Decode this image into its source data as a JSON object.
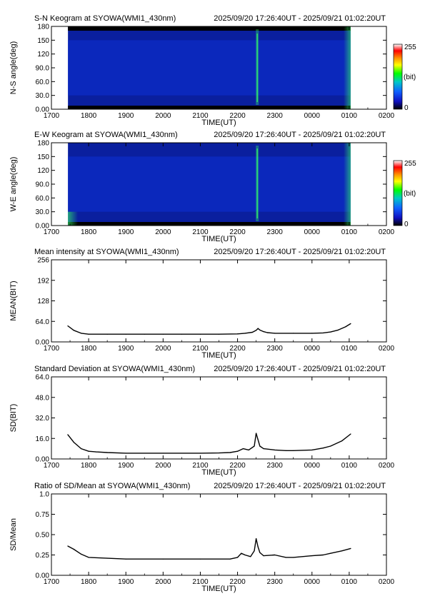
{
  "header": {
    "period": "2025/09/20 17:26:40UT - 2025/09/21 01:02:20UT"
  },
  "colors": {
    "keogram_background": "#0a1f9e",
    "keogram_band": "#0b2fd0",
    "keogram_dark": "#000000",
    "aurora": "#33ff66",
    "colorbar": [
      "#000000",
      "#1010c0",
      "#1060ff",
      "#00c8c8",
      "#00ff00",
      "#ffff00",
      "#ff9900",
      "#ff0000",
      "#ffffff"
    ]
  },
  "chart_data": [
    {
      "type": "heatmap",
      "title": "S-N Keogram at SYOWA(WMI1_430nm)",
      "xlabel": "TIME(UT)",
      "ylabel": "N-S angle(deg)",
      "x_ticks": [
        "1700",
        "1800",
        "1900",
        "2000",
        "2100",
        "2200",
        "2300",
        "0000",
        "0100",
        "0200"
      ],
      "y_ticks": [
        0,
        30,
        60,
        90,
        120,
        150,
        180
      ],
      "y_tick_labels": [
        "0.00",
        "30.0",
        "60.0",
        "90.0",
        "120",
        "150",
        "180"
      ],
      "ylim": [
        0,
        180
      ],
      "data_span_hours": [
        17.444,
        25.039
      ],
      "colorbar": {
        "max_label": "255",
        "unit_label": "(bit)",
        "min_label": "0"
      }
    },
    {
      "type": "heatmap",
      "title": "E-W Keogram at SYOWA(WMI1_430nm)",
      "xlabel": "TIME(UT)",
      "ylabel": "W-E angle(deg)",
      "x_ticks": [
        "1700",
        "1800",
        "1900",
        "2000",
        "2100",
        "2200",
        "2300",
        "0000",
        "0100",
        "0200"
      ],
      "y_ticks": [
        0,
        30,
        60,
        90,
        120,
        150,
        180
      ],
      "y_tick_labels": [
        "0.00",
        "30.0",
        "60.0",
        "90.0",
        "120",
        "150",
        "180"
      ],
      "ylim": [
        0,
        180
      ],
      "data_span_hours": [
        17.444,
        25.039
      ],
      "colorbar": {
        "max_label": "255",
        "unit_label": "(bit)",
        "min_label": "0"
      }
    },
    {
      "type": "line",
      "title": "Mean intensity at SYOWA(WMI1_430nm)",
      "xlabel": "TIME(UT)",
      "ylabel": "MEAN(BIT)",
      "x_ticks": [
        "1700",
        "1800",
        "1900",
        "2000",
        "2100",
        "2200",
        "2300",
        "0000",
        "0100",
        "0200"
      ],
      "y_ticks": [
        0,
        64,
        128,
        192,
        256
      ],
      "y_tick_labels": [
        "0.00",
        "64.0",
        "128",
        "192",
        "256"
      ],
      "ylim": [
        0,
        256
      ],
      "x_hours": [
        17.44,
        17.6,
        17.8,
        18.0,
        18.5,
        19.0,
        19.5,
        20.0,
        20.5,
        21.0,
        21.5,
        22.0,
        22.2,
        22.4,
        22.5,
        22.55,
        22.6,
        22.7,
        22.8,
        23.0,
        23.5,
        24.0,
        24.3,
        24.5,
        24.7,
        24.9,
        25.04
      ],
      "values": [
        50,
        36,
        27,
        24,
        24,
        24,
        24,
        24,
        24,
        24,
        24,
        25,
        27,
        30,
        36,
        42,
        37,
        32,
        29,
        27,
        27,
        27,
        28,
        31,
        37,
        47,
        57
      ]
    },
    {
      "type": "line",
      "title": "Standard Deviation at SYOWA(WMI1_430nm)",
      "xlabel": "TIME(UT)",
      "ylabel": "SD(BIT)",
      "x_ticks": [
        "1700",
        "1800",
        "1900",
        "2000",
        "2100",
        "2200",
        "2300",
        "0000",
        "0100",
        "0200"
      ],
      "y_ticks": [
        0,
        16,
        32,
        48,
        64
      ],
      "y_tick_labels": [
        "0.00",
        "16.0",
        "32.0",
        "48.0",
        "64.0"
      ],
      "ylim": [
        0,
        64
      ],
      "x_hours": [
        17.44,
        17.6,
        17.8,
        18.0,
        18.2,
        18.5,
        19.0,
        20.0,
        21.0,
        21.5,
        21.8,
        22.0,
        22.15,
        22.3,
        22.45,
        22.5,
        22.55,
        22.6,
        22.7,
        23.0,
        23.3,
        23.5,
        24.0,
        24.3,
        24.5,
        24.8,
        25.04
      ],
      "values": [
        19,
        13,
        8,
        6,
        5.5,
        5,
        4.5,
        4.5,
        4.5,
        4.7,
        5,
        6,
        8,
        7,
        10,
        20,
        15,
        10,
        8,
        7,
        6.5,
        6.5,
        7,
        8.5,
        10,
        14,
        19.5
      ]
    },
    {
      "type": "line",
      "title": "Ratio of SD/Mean at SYOWA(WMI1_430nm)",
      "xlabel": "TIME(UT)",
      "ylabel": "SD/Mean",
      "x_ticks": [
        "1700",
        "1800",
        "1900",
        "2000",
        "2100",
        "2200",
        "2300",
        "0000",
        "0100",
        "0200"
      ],
      "y_ticks": [
        0,
        0.25,
        0.5,
        0.75,
        1.0
      ],
      "y_tick_labels": [
        "0.00",
        "0.25",
        "0.50",
        "0.75",
        "1.0"
      ],
      "ylim": [
        0,
        1
      ],
      "x_hours": [
        17.44,
        17.6,
        17.8,
        18.0,
        18.5,
        19.0,
        20.0,
        21.0,
        21.8,
        22.0,
        22.1,
        22.2,
        22.35,
        22.45,
        22.5,
        22.55,
        22.6,
        22.7,
        23.0,
        23.3,
        23.5,
        24.0,
        24.3,
        24.5,
        24.8,
        25.04
      ],
      "values": [
        0.36,
        0.32,
        0.26,
        0.22,
        0.21,
        0.2,
        0.2,
        0.2,
        0.2,
        0.22,
        0.27,
        0.25,
        0.23,
        0.3,
        0.45,
        0.35,
        0.28,
        0.24,
        0.25,
        0.22,
        0.22,
        0.24,
        0.25,
        0.27,
        0.3,
        0.33
      ]
    }
  ]
}
